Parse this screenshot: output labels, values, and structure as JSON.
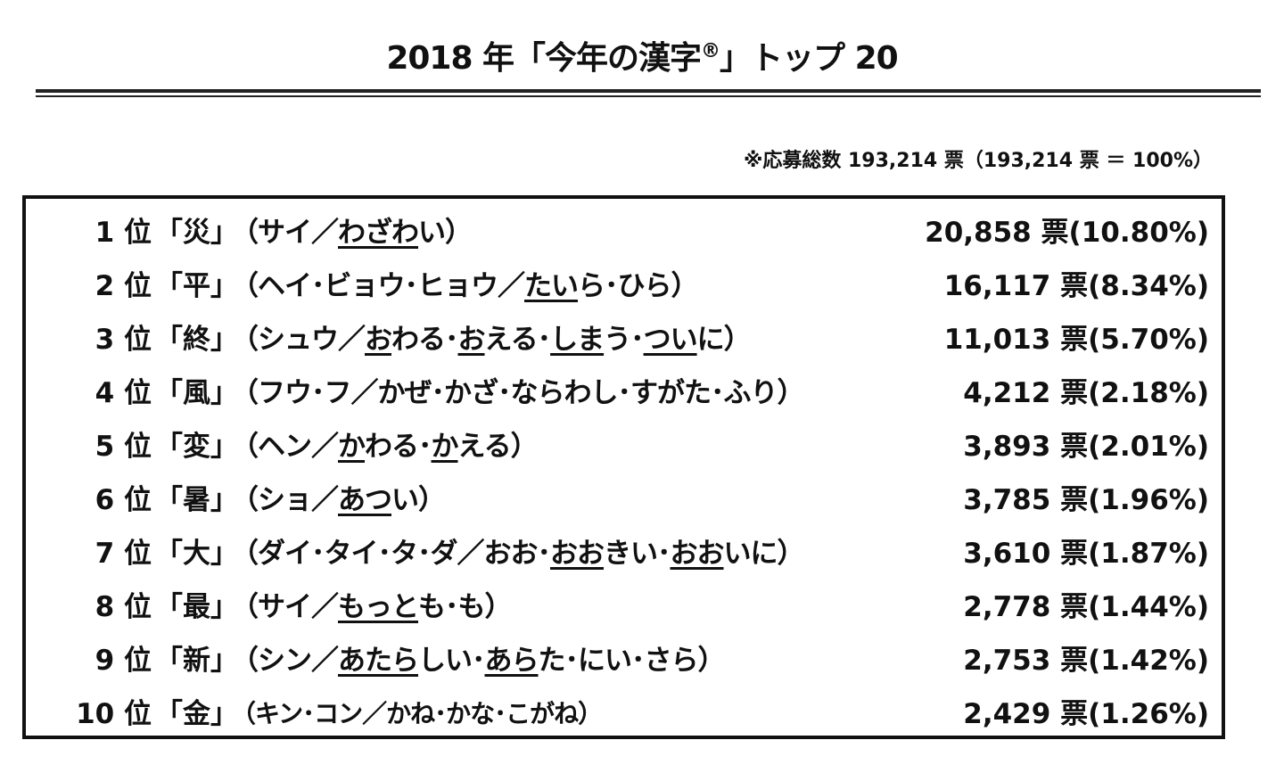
{
  "title": {
    "prefix": "2018 年「今年の漢字",
    "mark": "®",
    "suffix": "」トップ 20"
  },
  "total": "※応募総数 193,214 票（193,214 票 ＝ 100%）",
  "rows": [
    {
      "rank": "1 位",
      "kanji": "「災」",
      "reading": [
        {
          "t": "（サイ／"
        },
        {
          "t": "わざわ",
          "u": true
        },
        {
          "t": "い）"
        }
      ],
      "votes": "20,858 票(10.80%)"
    },
    {
      "rank": "2 位",
      "kanji": "「平」",
      "reading": [
        {
          "t": "（ヘイ･ビョウ･ヒョウ／"
        },
        {
          "t": "たい",
          "u": true
        },
        {
          "t": "ら･ひら）"
        }
      ],
      "votes": "16,117 票(8.34%)"
    },
    {
      "rank": "3 位",
      "kanji": "「終」",
      "reading": [
        {
          "t": "（シュウ／"
        },
        {
          "t": "お",
          "u": true
        },
        {
          "t": "わる･"
        },
        {
          "t": "お",
          "u": true
        },
        {
          "t": "える･"
        },
        {
          "t": "しま",
          "u": true
        },
        {
          "t": "う･"
        },
        {
          "t": "つい",
          "u": true
        },
        {
          "t": "に）"
        }
      ],
      "votes": "11,013 票(5.70%)"
    },
    {
      "rank": "4 位",
      "kanji": "「風」",
      "reading": [
        {
          "t": "（フウ･フ／かぜ･かざ･ならわし･すがた･ふり）"
        }
      ],
      "votes": "4,212 票(2.18%)"
    },
    {
      "rank": "5 位",
      "kanji": "「変」",
      "reading": [
        {
          "t": "（ヘン／"
        },
        {
          "t": "か",
          "u": true
        },
        {
          "t": "わる･"
        },
        {
          "t": "か",
          "u": true
        },
        {
          "t": "える）"
        }
      ],
      "votes": "3,893 票(2.01%)"
    },
    {
      "rank": "6 位",
      "kanji": "「暑」",
      "reading": [
        {
          "t": "（ショ／"
        },
        {
          "t": "あつ",
          "u": true
        },
        {
          "t": "い）"
        }
      ],
      "votes": "3,785 票(1.96%)"
    },
    {
      "rank": "7 位",
      "kanji": "「大」",
      "reading": [
        {
          "t": "（ダイ･タイ･タ･ダ／おお･"
        },
        {
          "t": "おお",
          "u": true
        },
        {
          "t": "きい･"
        },
        {
          "t": "おお",
          "u": true
        },
        {
          "t": "いに）"
        }
      ],
      "votes": "3,610 票(1.87%)"
    },
    {
      "rank": "8 位",
      "kanji": "「最」",
      "reading": [
        {
          "t": "（サイ／"
        },
        {
          "t": "もっと",
          "u": true
        },
        {
          "t": "も･も）"
        }
      ],
      "votes": "2,778 票(1.44%)"
    },
    {
      "rank": "9 位",
      "kanji": "「新」",
      "reading": [
        {
          "t": "（シン／"
        },
        {
          "t": "あたら",
          "u": true
        },
        {
          "t": "しい･"
        },
        {
          "t": "あら",
          "u": true
        },
        {
          "t": "た･にい･さら）"
        }
      ],
      "votes": "2,753 票(1.42%)"
    },
    {
      "rank": "10 位",
      "kanji": "「金」",
      "reading": [
        {
          "t": "（キン･コン／かね･かな･こがね）"
        }
      ],
      "votes": "2,429 票(1.26%)"
    }
  ]
}
